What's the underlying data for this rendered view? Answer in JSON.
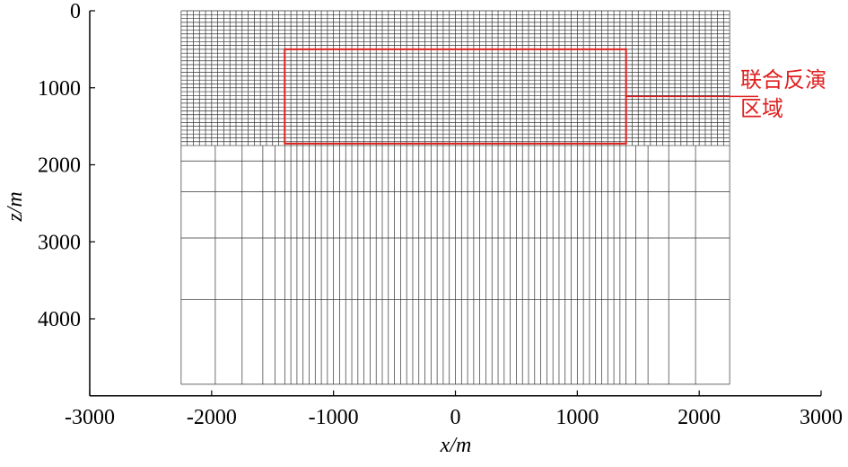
{
  "chart_data": {
    "type": "mesh",
    "xlabel": "x/m",
    "ylabel": "z/m",
    "xlim": [
      -3000,
      3000
    ],
    "ylim": [
      0,
      5000
    ],
    "xticks": [
      -3000,
      -2000,
      -1000,
      0,
      1000,
      2000,
      3000
    ],
    "yticks": [
      0,
      1000,
      2000,
      3000,
      4000
    ],
    "mesh": {
      "upper": {
        "x": [
          -2250,
          -2200,
          -2150,
          -2100,
          -2050,
          -2000,
          -1950,
          -1900,
          -1850,
          -1800,
          -1750,
          -1700,
          -1650,
          -1600,
          -1550,
          -1500,
          -1450,
          -1400,
          -1350,
          -1300,
          -1250,
          -1200,
          -1150,
          -1100,
          -1050,
          -1000,
          -950,
          -900,
          -850,
          -800,
          -750,
          -700,
          -650,
          -600,
          -550,
          -500,
          -450,
          -400,
          -350,
          -300,
          -250,
          -200,
          -150,
          -100,
          -50,
          0,
          50,
          100,
          150,
          200,
          250,
          300,
          350,
          400,
          450,
          500,
          550,
          600,
          650,
          700,
          750,
          800,
          850,
          900,
          950,
          1000,
          1050,
          1100,
          1150,
          1200,
          1250,
          1300,
          1350,
          1400,
          1450,
          1500,
          1550,
          1600,
          1650,
          1700,
          1750,
          1800,
          1850,
          1900,
          1950,
          2000,
          2050,
          2100,
          2150,
          2200,
          2250
        ],
        "z": [
          0,
          50,
          100,
          150,
          200,
          250,
          300,
          350,
          400,
          450,
          500,
          550,
          600,
          650,
          700,
          750,
          800,
          850,
          900,
          950,
          1000,
          1050,
          1100,
          1150,
          1200,
          1250,
          1300,
          1350,
          1400,
          1450,
          1500,
          1550,
          1600,
          1650,
          1700,
          1750
        ]
      },
      "lower": {
        "x": [
          -2250,
          -1970,
          -1750,
          -1580,
          -1480,
          -1400,
          -1350,
          -1300,
          -1250,
          -1200,
          -1150,
          -1100,
          -1050,
          -1000,
          -950,
          -900,
          -850,
          -800,
          -750,
          -700,
          -650,
          -600,
          -550,
          -500,
          -450,
          -400,
          -350,
          -300,
          -250,
          -200,
          -150,
          -100,
          -50,
          0,
          50,
          100,
          150,
          200,
          250,
          300,
          350,
          400,
          450,
          500,
          550,
          600,
          650,
          700,
          750,
          800,
          850,
          900,
          950,
          1000,
          1050,
          1100,
          1150,
          1200,
          1250,
          1300,
          1350,
          1400,
          1480,
          1580,
          1750,
          1970,
          2250
        ],
        "z": [
          1950,
          2350,
          2950,
          3750,
          4850
        ]
      }
    },
    "region": {
      "x": [
        -1400,
        1400
      ],
      "z": [
        500,
        1725
      ],
      "color": "#e02020",
      "label": [
        "联合反演",
        "区域"
      ]
    }
  }
}
